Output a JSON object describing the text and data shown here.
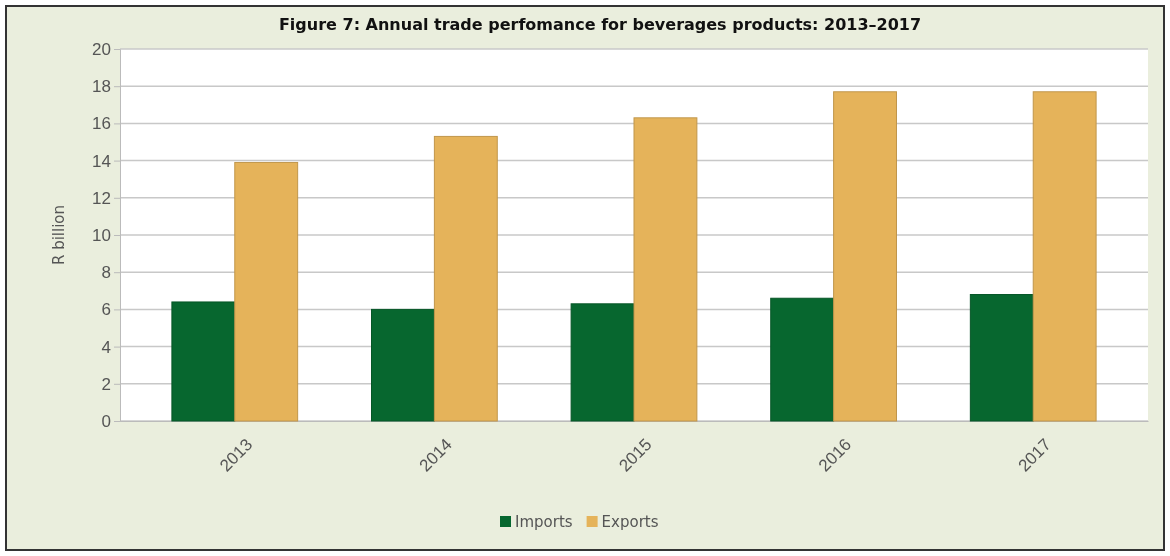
{
  "chart_data": {
    "type": "bar",
    "title": "Figure 7: Annual trade perfomance for beverages products: 2013–2017",
    "ylabel": "R billion",
    "categories": [
      "2013",
      "2014",
      "2015",
      "2016",
      "2017"
    ],
    "series": [
      {
        "name": "Imports",
        "color": "#07672f",
        "values": [
          6.4,
          6.0,
          6.3,
          6.6,
          6.8
        ]
      },
      {
        "name": "Exports",
        "color": "#e5b35a",
        "values": [
          13.9,
          15.3,
          16.3,
          17.7,
          17.7
        ]
      }
    ],
    "ylim": [
      0,
      20
    ],
    "yticks": [
      0,
      2,
      4,
      6,
      8,
      10,
      12,
      14,
      16,
      18,
      20
    ],
    "grid": "y",
    "legend": "bottom"
  }
}
